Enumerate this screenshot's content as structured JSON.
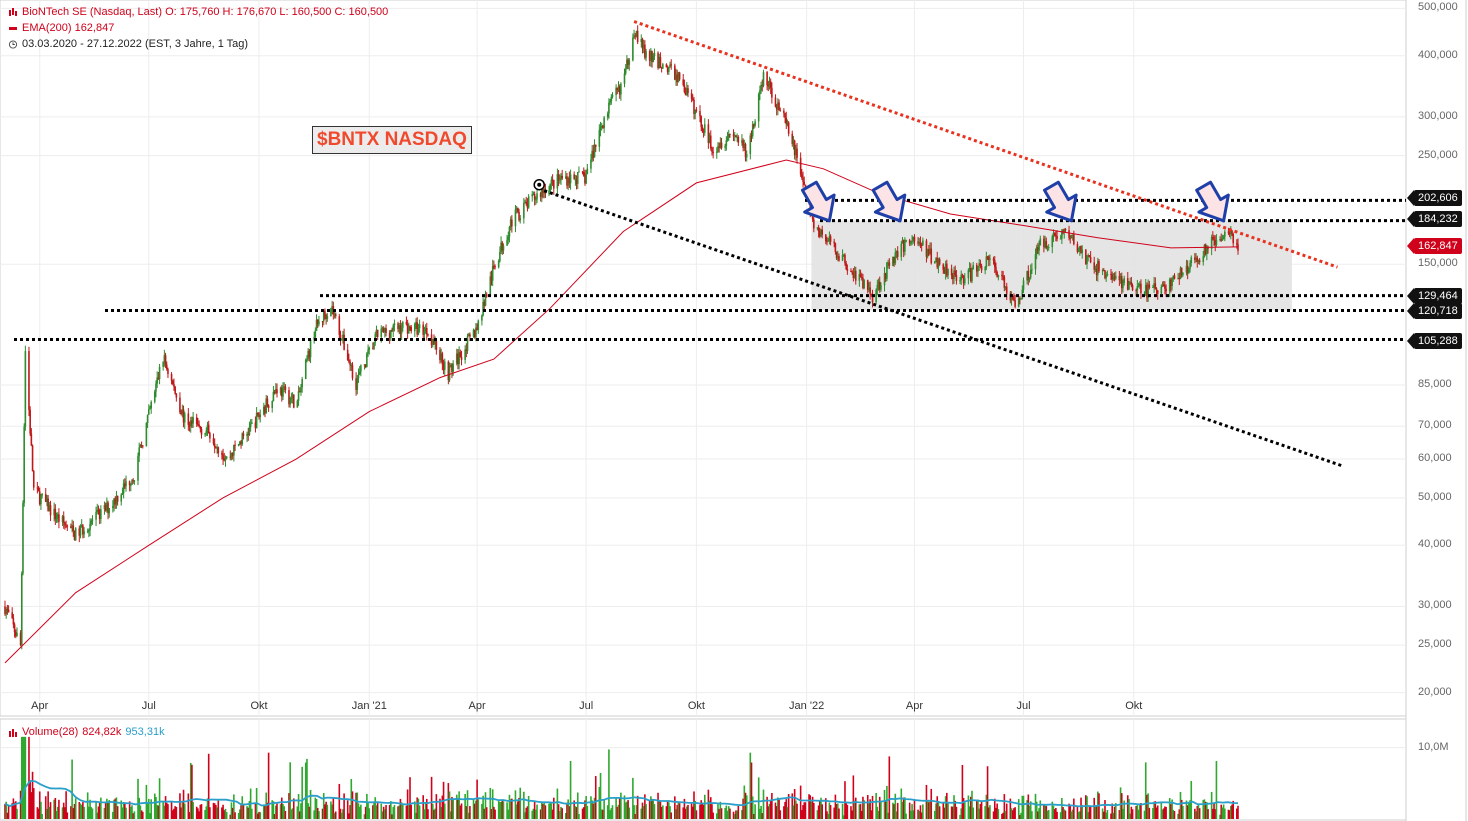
{
  "legend": {
    "line1": "BioNTech SE (Nasdaq, Last)  O: 175,760  H: 176,670  L: 160,500  C: 160,500",
    "line2": "EMA(200)  162,847",
    "line3": "03.03.2020 - 27.12.2022   (EST, 3 Jahre, 1 Tag)",
    "volume_label": "Volume(28)",
    "volume_value": "824,82k",
    "volume_avg": "953,31k"
  },
  "annotation": {
    "ticker_tag": "$BNTX  NASDAQ"
  },
  "price_labels": {
    "l202": "202,606",
    "l184": "184,232",
    "ema": "162,847",
    "l129": "129,464",
    "l120": "120,718",
    "l105": "105,288"
  },
  "colors": {
    "ema": "#d0021b",
    "volume_up": "#2ea82e",
    "volume_down": "#d0021b",
    "volume_avg": "#2a9fc9",
    "trend_red": "#e8321e",
    "arrows": "#1f3fa8",
    "range_box": "#e0e0e0"
  },
  "icons": [
    "candles-icon",
    "ema-line-icon",
    "clock-icon",
    "volume-bars-icon",
    "arrow-down-icon"
  ],
  "chart_data": {
    "type": "candlestick",
    "scale": "log",
    "ylim": [
      18,
      520
    ],
    "yticks": [
      {
        "value": 500,
        "label": "500,000"
      },
      {
        "value": 400,
        "label": "400,000"
      },
      {
        "value": 300,
        "label": "300,000"
      },
      {
        "value": 250,
        "label": "250,000"
      },
      {
        "value": 150,
        "label": "150,000"
      },
      {
        "value": 85,
        "label": "85,000"
      },
      {
        "value": 70,
        "label": "70,000"
      },
      {
        "value": 60,
        "label": "60,000"
      },
      {
        "value": 50,
        "label": "50,000"
      },
      {
        "value": 40,
        "label": "40,000"
      },
      {
        "value": 30,
        "label": "30,000"
      },
      {
        "value": 25,
        "label": "25,000"
      },
      {
        "value": 20,
        "label": "20,000"
      }
    ],
    "xticks": [
      "Apr",
      "Jul",
      "Okt",
      "Jan '21",
      "Apr",
      "Jul",
      "Okt",
      "Jan '22",
      "Apr",
      "Jul",
      "Okt"
    ],
    "x_range": [
      "2020-03-03",
      "2022-12-27"
    ],
    "close_path": [
      [
        "2020-03-03",
        30
      ],
      [
        "2020-03-16",
        25
      ],
      [
        "2020-03-20",
        100
      ],
      [
        "2020-03-27",
        52
      ],
      [
        "2020-04-14",
        46
      ],
      [
        "2020-05-01",
        42
      ],
      [
        "2020-05-29",
        48
      ],
      [
        "2020-06-19",
        56
      ],
      [
        "2020-07-13",
        97
      ],
      [
        "2020-07-31",
        72
      ],
      [
        "2020-08-21",
        68
      ],
      [
        "2020-09-04",
        60
      ],
      [
        "2020-09-25",
        70
      ],
      [
        "2020-10-16",
        84
      ],
      [
        "2020-11-02",
        78
      ],
      [
        "2020-11-16",
        110
      ],
      [
        "2020-11-30",
        124
      ],
      [
        "2020-12-21",
        86
      ],
      [
        "2021-01-08",
        108
      ],
      [
        "2021-01-29",
        112
      ],
      [
        "2021-02-19",
        110
      ],
      [
        "2021-03-08",
        90
      ],
      [
        "2021-03-31",
        110
      ],
      [
        "2021-04-16",
        150
      ],
      [
        "2021-04-30",
        185
      ],
      [
        "2021-05-14",
        200
      ],
      [
        "2021-05-28",
        215
      ],
      [
        "2021-06-11",
        225
      ],
      [
        "2021-06-30",
        225
      ],
      [
        "2021-07-16",
        300
      ],
      [
        "2021-08-02",
        360
      ],
      [
        "2021-08-10",
        455
      ],
      [
        "2021-08-20",
        400
      ],
      [
        "2021-09-03",
        385
      ],
      [
        "2021-09-17",
        360
      ],
      [
        "2021-10-01",
        305
      ],
      [
        "2021-10-15",
        260
      ],
      [
        "2021-11-01",
        280
      ],
      [
        "2021-11-12",
        250
      ],
      [
        "2021-11-26",
        365
      ],
      [
        "2021-12-10",
        310
      ],
      [
        "2021-12-24",
        250
      ],
      [
        "2022-01-07",
        180
      ],
      [
        "2022-01-21",
        165
      ],
      [
        "2022-02-04",
        150
      ],
      [
        "2022-02-25",
        130
      ],
      [
        "2022-03-18",
        160
      ],
      [
        "2022-03-31",
        170
      ],
      [
        "2022-04-22",
        150
      ],
      [
        "2022-05-13",
        140
      ],
      [
        "2022-06-03",
        155
      ],
      [
        "2022-06-24",
        123
      ],
      [
        "2022-07-15",
        165
      ],
      [
        "2022-08-05",
        175
      ],
      [
        "2022-08-26",
        150
      ],
      [
        "2022-09-16",
        140
      ],
      [
        "2022-10-07",
        132
      ],
      [
        "2022-10-28",
        135
      ],
      [
        "2022-11-18",
        150
      ],
      [
        "2022-12-09",
        170
      ],
      [
        "2022-12-20",
        178
      ],
      [
        "2022-12-27",
        160.5
      ]
    ],
    "ema200_path": [
      [
        "2020-03-03",
        23
      ],
      [
        "2020-05-01",
        32
      ],
      [
        "2020-07-01",
        40
      ],
      [
        "2020-09-01",
        50
      ],
      [
        "2020-11-01",
        60
      ],
      [
        "2021-01-01",
        75
      ],
      [
        "2021-03-01",
        88
      ],
      [
        "2021-04-15",
        96
      ],
      [
        "2021-06-01",
        122
      ],
      [
        "2021-08-01",
        175
      ],
      [
        "2021-10-01",
        220
      ],
      [
        "2021-12-15",
        245
      ],
      [
        "2022-01-15",
        235
      ],
      [
        "2022-03-01",
        210
      ],
      [
        "2022-05-01",
        190
      ],
      [
        "2022-07-01",
        180
      ],
      [
        "2022-09-01",
        170
      ],
      [
        "2022-11-01",
        162
      ],
      [
        "2022-12-27",
        162.8
      ]
    ],
    "horizontal_levels": [
      202.606,
      184.232,
      129.464,
      120.718,
      105.288
    ],
    "ema_last": 162.847,
    "range_box": {
      "from": "2022-01-05",
      "to": "2023-02-10",
      "low": 120.718,
      "high": 184.232
    },
    "trendlines": [
      {
        "color": "red",
        "from": [
          "2021-08-10",
          470
        ],
        "to": [
          "2023-03-20",
          148
        ]
      },
      {
        "color": "black",
        "from": [
          "2021-05-27",
          212
        ],
        "to": [
          "2023-03-25",
          58
        ]
      }
    ],
    "arrows": [
      [
        "2022-01-20",
        184
      ],
      [
        "2022-03-20",
        184
      ],
      [
        "2022-08-10",
        184
      ],
      [
        "2022-12-15",
        184
      ]
    ],
    "volume": {
      "ylim": [
        0,
        14
      ],
      "yticks": [
        {
          "value": 10,
          "label": "10,0M"
        }
      ],
      "unit": "M"
    }
  }
}
